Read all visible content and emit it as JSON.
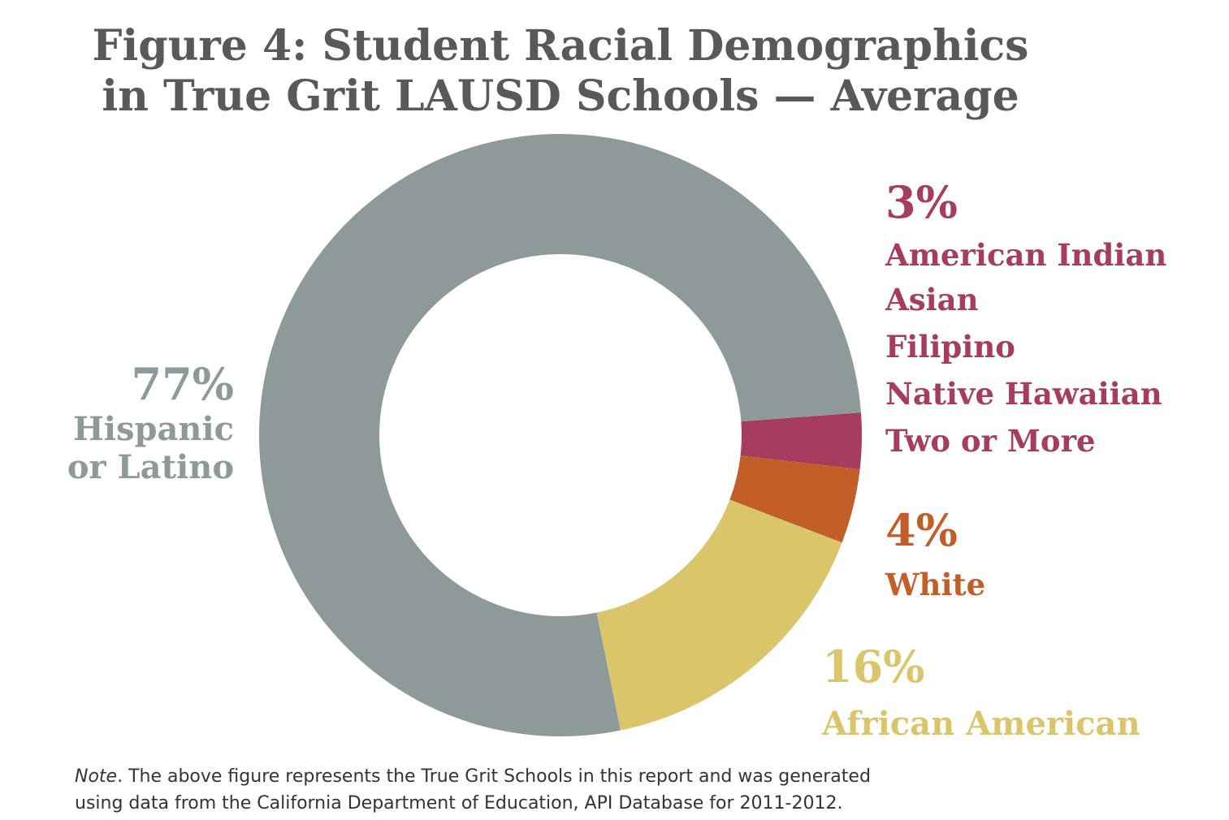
{
  "title_line1": "Figure 4: Student Racial Demographics",
  "title_line2": "in True Grit LAUSD Schools — Average",
  "note_prefix": "Note",
  "note_line1": ". The above figure represents the True Grit Schools in this report and was generated",
  "note_line2": "using data from the California Department of Education, API Database for 2011-2012.",
  "colors": {
    "hispanic": "#8e9a9a",
    "other": "#a63d5e",
    "white": "#c25e28",
    "african_american": "#dbc56b"
  },
  "chart_data": {
    "type": "pie",
    "donut": true,
    "title": "Figure 4: Student Racial Demographics in True Grit LAUSD Schools — Average",
    "slices": [
      {
        "key": "hispanic",
        "value": 77,
        "percent_label": "77%",
        "label_lines": [
          "Hispanic",
          "or Latino"
        ]
      },
      {
        "key": "other",
        "value": 3,
        "percent_label": "3%",
        "label_lines": [
          "American Indian",
          "Asian",
          "Filipino",
          "Native Hawaiian",
          "Two or More"
        ]
      },
      {
        "key": "white",
        "value": 4,
        "percent_label": "4%",
        "label_lines": [
          "White"
        ]
      },
      {
        "key": "african_american",
        "value": 16,
        "percent_label": "16%",
        "label_lines": [
          "African American"
        ]
      }
    ]
  }
}
